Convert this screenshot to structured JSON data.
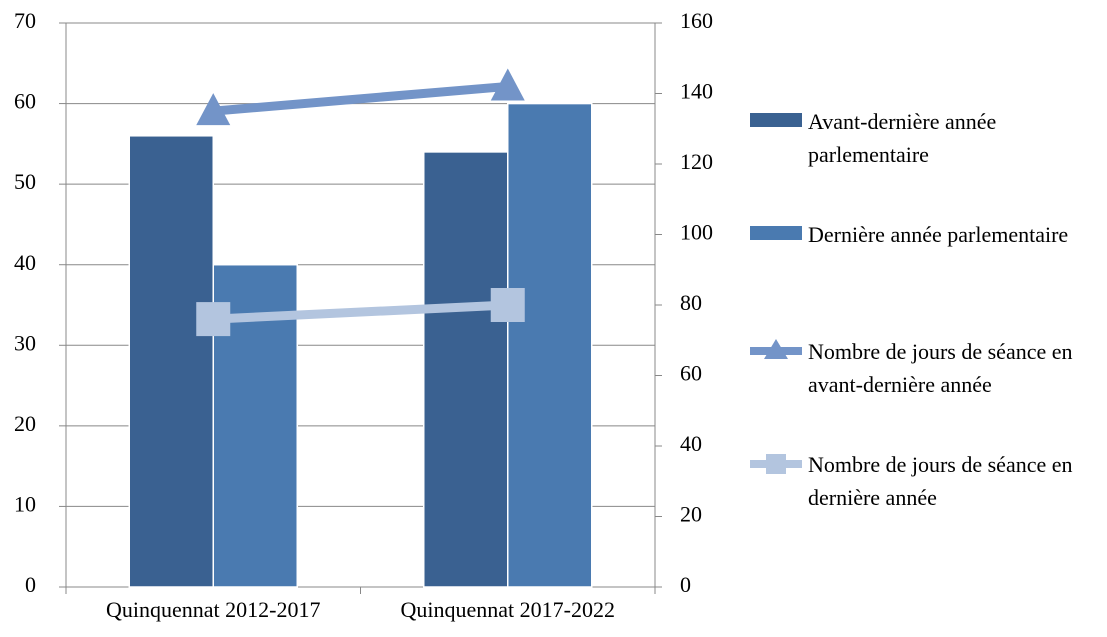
{
  "chart_data": {
    "type": "bar",
    "categories": [
      "Quinquennat 2012-2017",
      "Quinquennat 2017-2022"
    ],
    "series": [
      {
        "name": "Avant-dernière année parlementaire",
        "type": "bar",
        "color": "#3a6191",
        "values": [
          56,
          54
        ]
      },
      {
        "name": "Dernière année parlementaire",
        "type": "bar",
        "color": "#4a7ab0",
        "values": [
          40,
          60
        ]
      },
      {
        "name": "Nombre de jours de séance en avant-dernière année",
        "type": "line",
        "marker": "triangle",
        "axis": "y2",
        "color": "#7394c8",
        "values": [
          135,
          142
        ]
      },
      {
        "name": "Nombre de jours de séance en dernière année",
        "type": "line",
        "marker": "square",
        "axis": "y2",
        "color": "#b3c5df",
        "values": [
          76,
          80
        ]
      }
    ],
    "ylim": [
      0,
      70
    ],
    "yticks": [
      0,
      10,
      20,
      30,
      40,
      50,
      60,
      70
    ],
    "y2lim": [
      0,
      160
    ],
    "y2ticks": [
      0,
      20,
      40,
      60,
      80,
      100,
      120,
      140,
      160
    ],
    "grid": true,
    "legend": "right"
  }
}
